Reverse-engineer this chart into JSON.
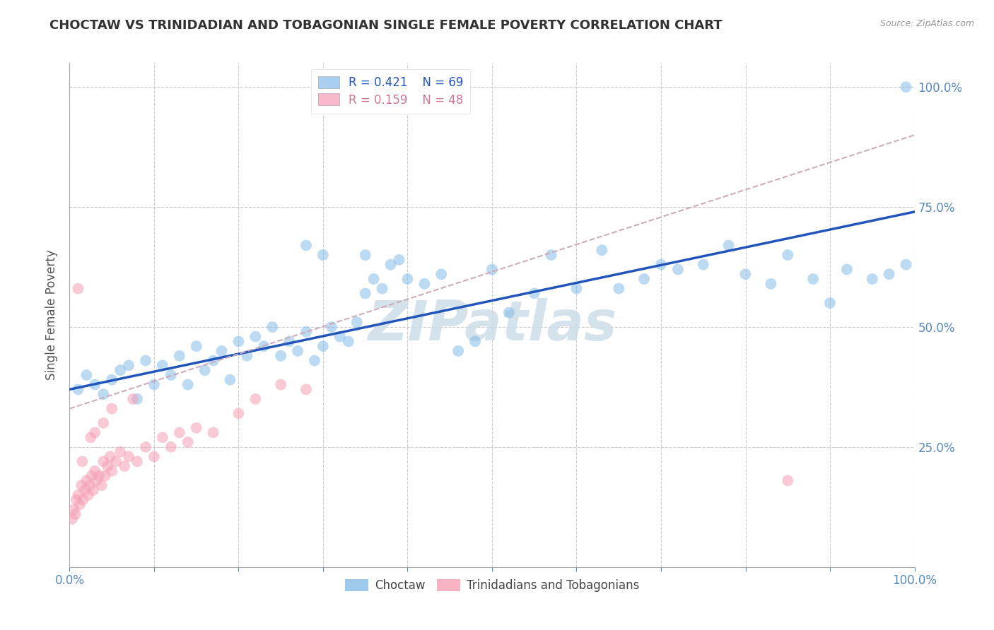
{
  "title": "CHOCTAW VS TRINIDADIAN AND TOBAGONIAN SINGLE FEMALE POVERTY CORRELATION CHART",
  "source": "Source: ZipAtlas.com",
  "ylabel": "Single Female Poverty",
  "xlim": [
    0,
    100
  ],
  "ylim": [
    0,
    105
  ],
  "x_tick_positions": [
    0,
    10,
    20,
    30,
    40,
    50,
    60,
    70,
    80,
    90,
    100
  ],
  "x_tick_labels_show": {
    "0": "0.0%",
    "100": "100.0%"
  },
  "y_tick_positions": [
    0,
    25,
    50,
    75,
    100
  ],
  "y_tick_labels": [
    "",
    "25.0%",
    "50.0%",
    "75.0%",
    "100.0%"
  ],
  "choctaw_R": 0.421,
  "choctaw_N": 69,
  "trini_R": 0.159,
  "trini_N": 48,
  "choctaw_color": "#85bce8",
  "trini_color": "#f5a0b5",
  "trendline_blue_color": "#2255bb",
  "trendline_dashed_color": "#ccaabb",
  "legend_box_blue": "#a8cef0",
  "legend_box_pink": "#f8b8cc",
  "legend_text_blue": "#2255bb",
  "legend_text_pink": "#cc7799",
  "watermark": "ZIPatlas",
  "watermark_color": "#ccdde8",
  "background_color": "#ffffff",
  "grid_color": "#cccccc",
  "title_color": "#333333",
  "axis_tick_color": "#5588bb",
  "ylabel_color": "#555555",
  "bottom_legend_label_color": "#444444",
  "choctaw_x": [
    1,
    2,
    3,
    4,
    5,
    6,
    7,
    8,
    9,
    10,
    11,
    12,
    13,
    14,
    15,
    16,
    17,
    18,
    19,
    20,
    21,
    22,
    23,
    24,
    25,
    26,
    27,
    28,
    29,
    30,
    31,
    32,
    33,
    34,
    35,
    36,
    37,
    38,
    39,
    40,
    42,
    44,
    46,
    48,
    50,
    52,
    55,
    57,
    60,
    63,
    65,
    68,
    70,
    72,
    75,
    78,
    80,
    83,
    85,
    88,
    90,
    92,
    95,
    97,
    99,
    28,
    30,
    35,
    99
  ],
  "choctaw_y": [
    37,
    40,
    38,
    36,
    39,
    41,
    42,
    35,
    43,
    38,
    42,
    40,
    44,
    38,
    46,
    41,
    43,
    45,
    39,
    47,
    44,
    48,
    46,
    50,
    44,
    47,
    45,
    49,
    43,
    46,
    50,
    48,
    47,
    51,
    57,
    60,
    58,
    63,
    64,
    60,
    59,
    61,
    45,
    47,
    62,
    53,
    57,
    65,
    58,
    66,
    58,
    60,
    63,
    62,
    63,
    67,
    61,
    59,
    65,
    60,
    55,
    62,
    60,
    61,
    63,
    67,
    65,
    65,
    100
  ],
  "trini_x": [
    0.3,
    0.5,
    0.7,
    0.8,
    1.0,
    1.2,
    1.4,
    1.6,
    1.8,
    2.0,
    2.2,
    2.4,
    2.6,
    2.8,
    3.0,
    3.2,
    3.5,
    3.8,
    4.0,
    4.2,
    4.5,
    4.8,
    5.0,
    5.5,
    6.0,
    6.5,
    7.0,
    8.0,
    9.0,
    10.0,
    11.0,
    12.0,
    13.0,
    14.0,
    15.0,
    17.0,
    20.0,
    22.0,
    25.0,
    28.0,
    1.0,
    1.5,
    2.5,
    3.0,
    4.0,
    5.0,
    7.5,
    85.0
  ],
  "trini_y": [
    10,
    12,
    11,
    14,
    15,
    13,
    17,
    14,
    16,
    18,
    15,
    17,
    19,
    16,
    20,
    18,
    19,
    17,
    22,
    19,
    21,
    23,
    20,
    22,
    24,
    21,
    23,
    22,
    25,
    23,
    27,
    25,
    28,
    26,
    29,
    28,
    32,
    35,
    38,
    37,
    58,
    22,
    27,
    28,
    30,
    33,
    35,
    18
  ],
  "choctaw_trend_x0": 0,
  "choctaw_trend_y0": 37,
  "choctaw_trend_x1": 100,
  "choctaw_trend_y1": 74,
  "dashed_trend_x0": 0,
  "dashed_trend_y0": 33,
  "dashed_trend_x1": 100,
  "dashed_trend_y1": 90,
  "marker_size": 130,
  "marker_alpha": 0.55,
  "trendline_lw": 2.5,
  "dashed_lw": 1.5
}
